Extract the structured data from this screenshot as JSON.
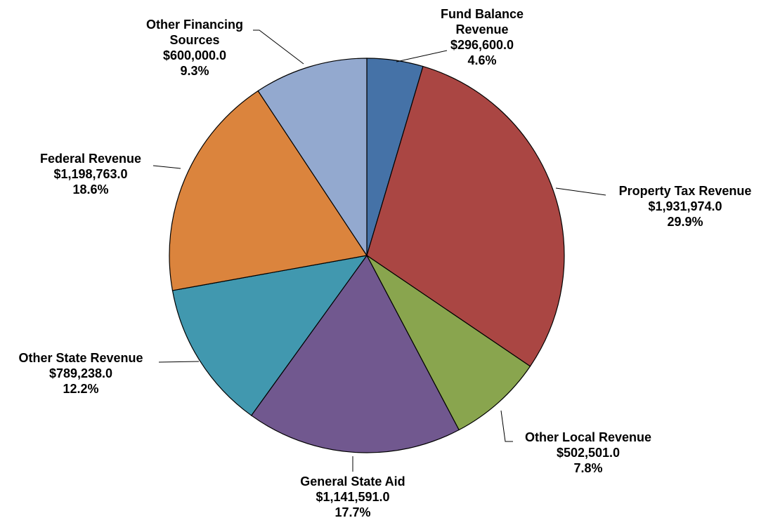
{
  "chart_data": {
    "type": "pie",
    "title": "",
    "start_angle_deg": 0,
    "direction": "clockwise",
    "slices": [
      {
        "name": "Fund Balance Revenue",
        "label_lines": [
          "Fund Balance",
          "Revenue"
        ],
        "value_label": "$296,600.0",
        "pct_label": "4.6%",
        "value": 296600.0,
        "percent": 4.6,
        "color": "#4572A7"
      },
      {
        "name": "Property Tax Revenue",
        "label_lines": [
          "Property Tax Revenue"
        ],
        "value_label": "$1,931,974.0",
        "pct_label": "29.9%",
        "value": 1931974.0,
        "percent": 29.9,
        "color": "#AA4643"
      },
      {
        "name": "Other Local Revenue",
        "label_lines": [
          "Other Local Revenue"
        ],
        "value_label": "$502,501.0",
        "pct_label": "7.8%",
        "value": 502501.0,
        "percent": 7.8,
        "color": "#89A54E"
      },
      {
        "name": "General State Aid",
        "label_lines": [
          "General State Aid"
        ],
        "value_label": "$1,141,591.0",
        "pct_label": "17.7%",
        "value": 1141591.0,
        "percent": 17.7,
        "color": "#71588F"
      },
      {
        "name": "Other State Revenue",
        "label_lines": [
          "Other State Revenue"
        ],
        "value_label": "$789,238.0",
        "pct_label": "12.2%",
        "value": 789238.0,
        "percent": 12.2,
        "color": "#4198AF"
      },
      {
        "name": "Federal Revenue",
        "label_lines": [
          "Federal Revenue"
        ],
        "value_label": "$1,198,763.0",
        "pct_label": "18.6%",
        "value": 1198763.0,
        "percent": 18.6,
        "color": "#DB843D"
      },
      {
        "name": "Other Financing Sources",
        "label_lines": [
          "Other Financing",
          "Sources"
        ],
        "value_label": "$600,000.0",
        "pct_label": "9.3%",
        "value": 600000.0,
        "percent": 9.3,
        "color": "#93A9CF"
      }
    ]
  }
}
